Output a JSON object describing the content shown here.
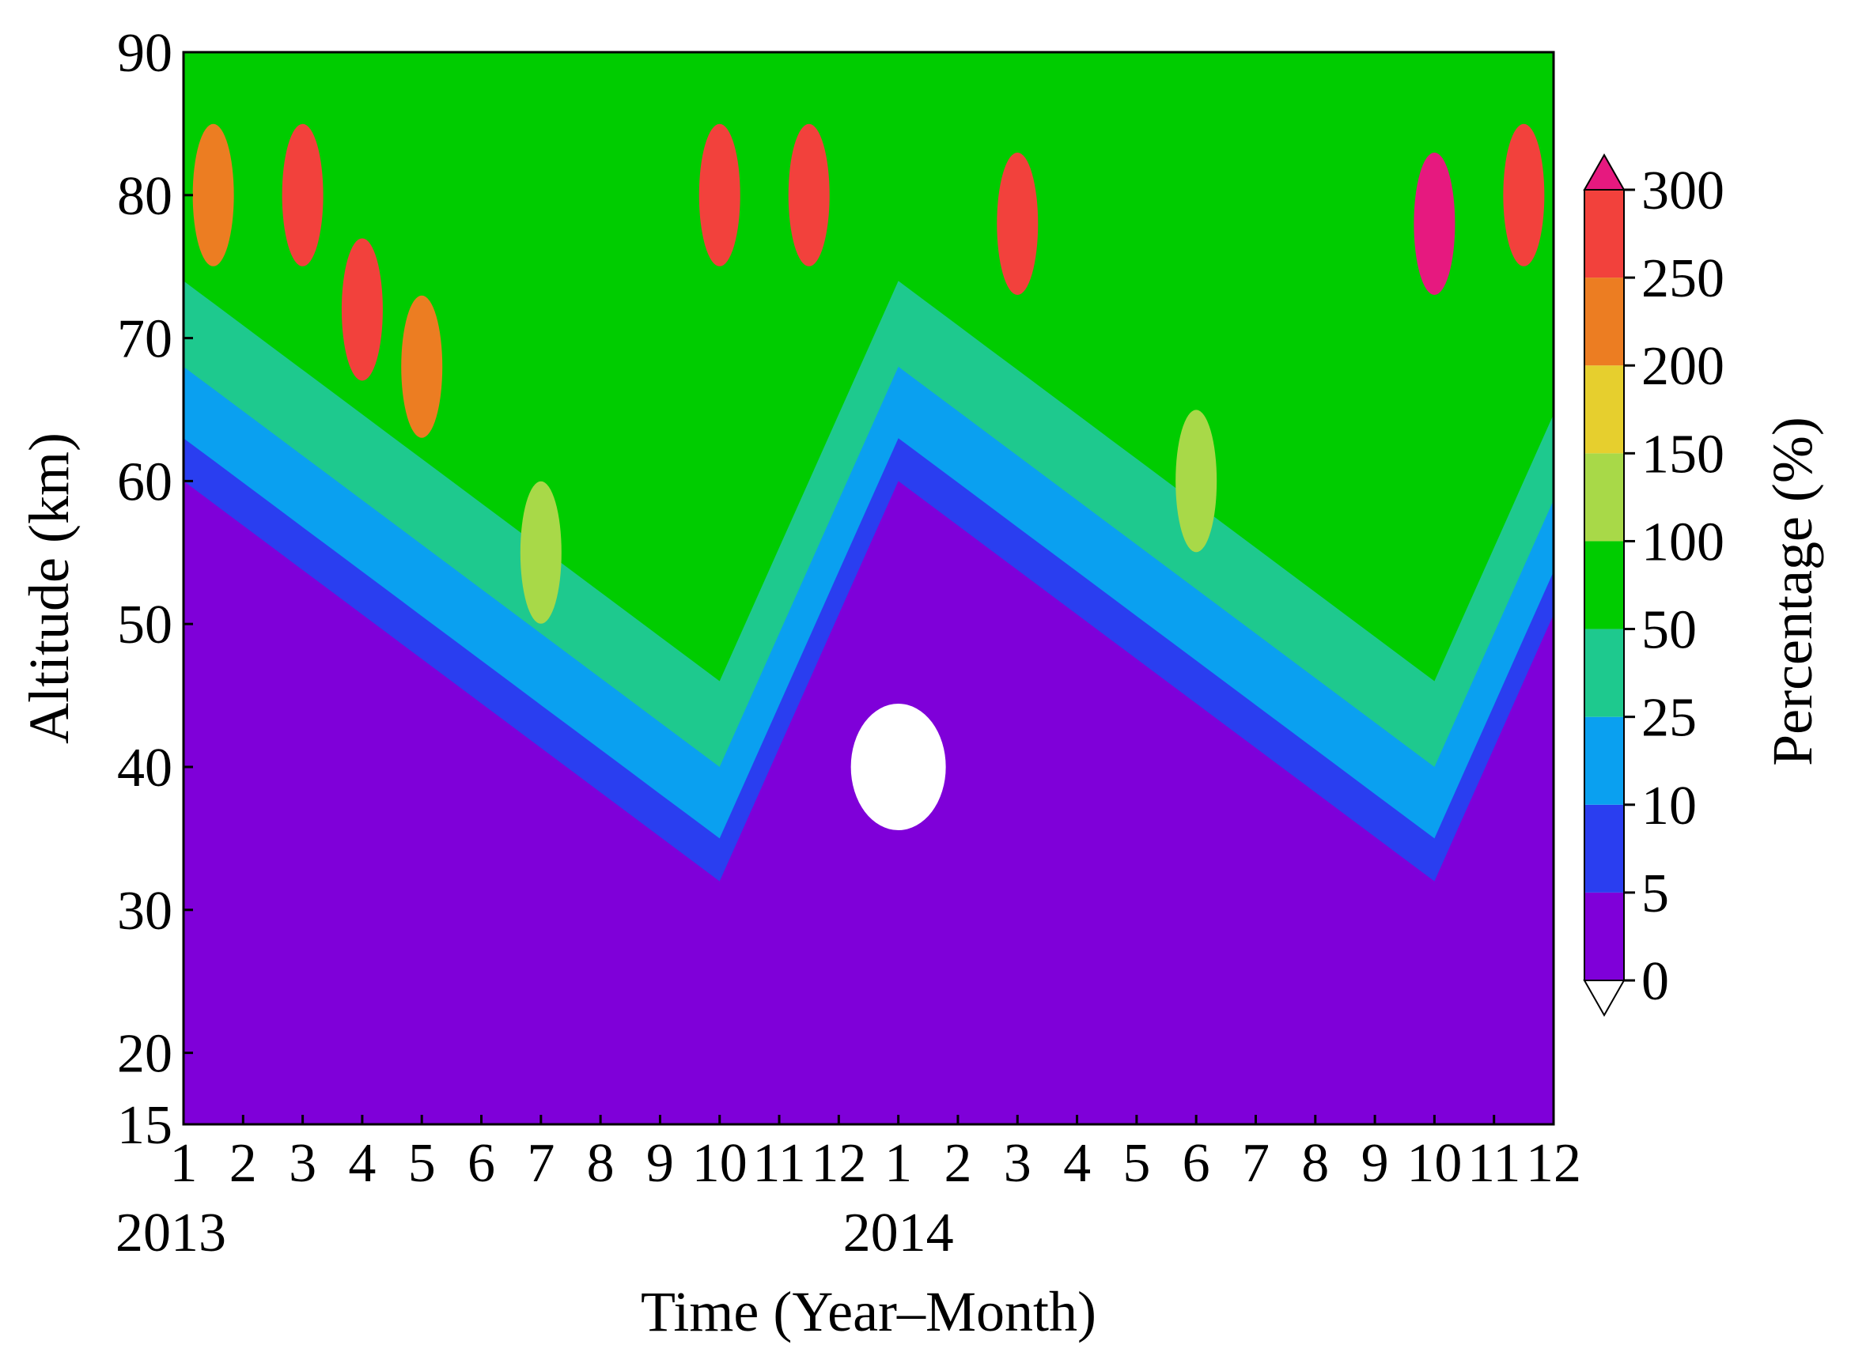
{
  "chart_data": {
    "type": "heatmap",
    "title": "",
    "xlabel": "Time (Year–Month)",
    "ylabel": "Altitude (km)",
    "colorbar_label": "Percentage (%)",
    "x_ticks": [
      "1",
      "2",
      "3",
      "4",
      "5",
      "6",
      "7",
      "8",
      "9",
      "10",
      "11",
      "12",
      "1",
      "2",
      "3",
      "4",
      "5",
      "6",
      "7",
      "8",
      "9",
      "10",
      "11",
      "12"
    ],
    "x_years": [
      {
        "label": "2013",
        "month_index": 0
      },
      {
        "label": "2014",
        "month_index": 12
      }
    ],
    "xlim_months": [
      0,
      23
    ],
    "y_ticks": [
      15,
      20,
      30,
      40,
      50,
      60,
      70,
      80,
      90
    ],
    "ylim": [
      15,
      90
    ],
    "colorbar": {
      "levels": [
        0,
        5,
        10,
        25,
        50,
        100,
        150,
        200,
        250,
        300
      ],
      "colors": [
        "#7f00d9",
        "#2a3ef0",
        "#0aa0f0",
        "#1ec98e",
        "#00cc00",
        "#a8d948",
        "#e6cf2e",
        "#ec7d22",
        "#f2413c"
      ],
      "under_color": "#ffffff",
      "over_color": "#e6197f",
      "extend": "both"
    },
    "field_description_points": [
      {
        "month": 0.5,
        "alt": 80,
        "level": 200
      },
      {
        "month": 2.0,
        "alt": 80,
        "level": 250
      },
      {
        "month": 3.0,
        "alt": 72,
        "level": 250
      },
      {
        "month": 4.0,
        "alt": 68,
        "level": 200
      },
      {
        "month": 6.0,
        "alt": 55,
        "level": 100
      },
      {
        "month": 9.0,
        "alt": 80,
        "level": 250
      },
      {
        "month": 10.5,
        "alt": 80,
        "level": 250
      },
      {
        "month": 14.0,
        "alt": 78,
        "level": 250
      },
      {
        "month": 17.0,
        "alt": 60,
        "level": 100
      },
      {
        "month": 21.0,
        "alt": 78,
        "level": 300
      },
      {
        "month": 22.5,
        "alt": 80,
        "level": 250
      },
      {
        "month": 12.0,
        "alt": 40,
        "level": 0
      }
    ]
  }
}
